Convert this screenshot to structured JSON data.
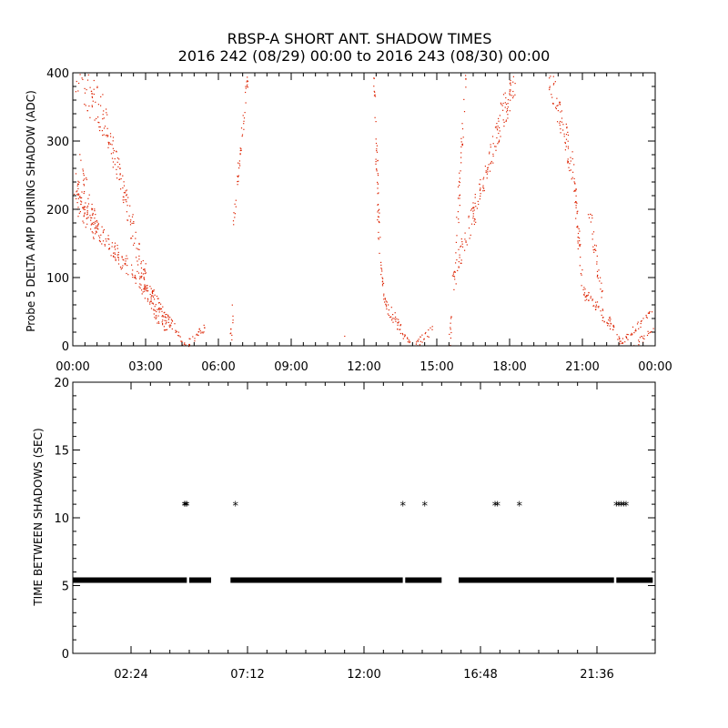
{
  "title": {
    "line1": "RBSP-A SHORT ANT. SHADOW TIMES",
    "line2": "2016 242 (08/29) 00:00 to 2016 243 (08/30) 00:00"
  },
  "colors": {
    "amp": "#dd2200",
    "gap": "#000000",
    "axis": "#000000"
  },
  "chart_data": [
    {
      "type": "scatter",
      "name": "delta-amp",
      "ylabel": "Probe 5 DELTA AMP DURING SHADOW (ADC)",
      "xlabel": "",
      "xlim": [
        0,
        24
      ],
      "ylim": [
        0,
        400
      ],
      "x_ticks": [
        0,
        3,
        6,
        9,
        12,
        15,
        18,
        21,
        24
      ],
      "x_tick_labels": [
        "00:00",
        "03:00",
        "06:00",
        "09:00",
        "12:00",
        "15:00",
        "18:00",
        "21:00",
        "00:00"
      ],
      "y_ticks": [
        0,
        100,
        200,
        300,
        400
      ],
      "y_tick_labels": [
        "0",
        "100",
        "200",
        "300",
        "400"
      ],
      "segments": [
        {
          "x0": 0.0,
          "y0": 240,
          "x1": 0.9,
          "y1": 175,
          "spread": 22,
          "density": 50
        },
        {
          "x0": 0.0,
          "y0": 215,
          "x1": 0.6,
          "y1": 190,
          "spread": 20,
          "density": 30
        },
        {
          "x0": 0.3,
          "y0": 270,
          "x1": 1.0,
          "y1": 170,
          "spread": 12,
          "density": 30
        },
        {
          "x0": 0.9,
          "y0": 175,
          "x1": 3.5,
          "y1": 60,
          "spread": 14,
          "density": 140
        },
        {
          "x0": 3.5,
          "y0": 60,
          "x1": 4.2,
          "y1": 25,
          "spread": 7,
          "density": 40
        },
        {
          "x0": 4.2,
          "y0": 25,
          "x1": 4.6,
          "y1": 1,
          "spread": 3,
          "density": 15
        },
        {
          "x0": 0.1,
          "y0": 400,
          "x1": 1.3,
          "y1": 335,
          "spread": 32,
          "density": 60
        },
        {
          "x0": 1.3,
          "y0": 335,
          "x1": 3.3,
          "y1": 50,
          "spread": 22,
          "density": 130
        },
        {
          "x0": 3.3,
          "y0": 50,
          "x1": 3.9,
          "y1": 25,
          "spread": 8,
          "density": 25
        },
        {
          "x0": 4.7,
          "y0": 2,
          "x1": 5.4,
          "y1": 28,
          "spread": 6,
          "density": 25
        },
        {
          "x0": 6.5,
          "y0": 8,
          "x1": 6.6,
          "y1": 70,
          "spread": 5,
          "density": 10
        },
        {
          "x0": 6.6,
          "y0": 180,
          "x1": 7.2,
          "y1": 400,
          "spread": 8,
          "density": 45
        },
        {
          "x0": 12.4,
          "y0": 400,
          "x1": 12.6,
          "y1": 160,
          "spread": 10,
          "density": 45
        },
        {
          "x0": 12.6,
          "y0": 160,
          "x1": 12.8,
          "y1": 65,
          "spread": 8,
          "density": 20
        },
        {
          "x0": 12.8,
          "y0": 65,
          "x1": 13.6,
          "y1": 20,
          "spread": 9,
          "density": 40
        },
        {
          "x0": 13.6,
          "y0": 20,
          "x1": 13.9,
          "y1": 1,
          "spread": 3,
          "density": 12
        },
        {
          "x0": 14.1,
          "y0": 2,
          "x1": 14.8,
          "y1": 25,
          "spread": 6,
          "density": 22
        },
        {
          "x0": 15.5,
          "y0": 3,
          "x1": 15.6,
          "y1": 50,
          "spread": 5,
          "density": 10
        },
        {
          "x0": 15.6,
          "y0": 90,
          "x1": 16.8,
          "y1": 230,
          "spread": 18,
          "density": 70
        },
        {
          "x0": 16.8,
          "y0": 230,
          "x1": 17.6,
          "y1": 330,
          "spread": 22,
          "density": 50
        },
        {
          "x0": 17.6,
          "y0": 330,
          "x1": 18.2,
          "y1": 395,
          "spread": 25,
          "density": 50
        },
        {
          "x0": 15.7,
          "y0": 110,
          "x1": 16.2,
          "y1": 400,
          "spread": 14,
          "density": 40
        },
        {
          "x0": 19.6,
          "y0": 400,
          "x1": 20.6,
          "y1": 260,
          "spread": 25,
          "density": 70
        },
        {
          "x0": 20.6,
          "y0": 260,
          "x1": 21.0,
          "y1": 80,
          "spread": 14,
          "density": 45
        },
        {
          "x0": 21.0,
          "y0": 80,
          "x1": 22.2,
          "y1": 30,
          "spread": 9,
          "density": 55
        },
        {
          "x0": 22.2,
          "y0": 30,
          "x1": 22.6,
          "y1": 2,
          "spread": 4,
          "density": 15
        },
        {
          "x0": 21.2,
          "y0": 215,
          "x1": 21.8,
          "y1": 70,
          "spread": 12,
          "density": 35
        },
        {
          "x0": 22.6,
          "y0": 4,
          "x1": 23.4,
          "y1": 35,
          "spread": 6,
          "density": 25
        },
        {
          "x0": 23.4,
          "y0": 35,
          "x1": 23.9,
          "y1": 55,
          "spread": 4,
          "density": 10
        },
        {
          "x0": 23.1,
          "y0": 2,
          "x1": 23.9,
          "y1": 22,
          "spread": 5,
          "density": 18
        },
        {
          "x0": 11.2,
          "y0": 15,
          "x1": 11.3,
          "y1": 15,
          "spread": 1,
          "density": 1
        }
      ]
    },
    {
      "type": "scatter",
      "name": "time-between-shadows",
      "ylabel": "TIME BETWEEN SHADOWS (SEC)",
      "xlabel": "",
      "xlim": [
        0,
        24
      ],
      "ylim": [
        0,
        20
      ],
      "x_ticks": [
        2.4,
        7.2,
        12.0,
        16.8,
        21.6
      ],
      "x_tick_labels": [
        "02:24",
        "07:12",
        "12:00",
        "16:48",
        "21:36"
      ],
      "y_ticks": [
        0,
        5,
        10,
        15,
        20
      ],
      "y_tick_labels": [
        "0",
        "5",
        "10",
        "15",
        "20"
      ],
      "baseline": {
        "value": 5.4,
        "ranges": [
          [
            0.0,
            4.7
          ],
          [
            4.8,
            5.7
          ],
          [
            6.5,
            13.6
          ],
          [
            13.7,
            15.2
          ],
          [
            15.9,
            22.3
          ],
          [
            22.4,
            23.9
          ]
        ]
      },
      "outliers": [
        {
          "x": 4.6,
          "y": 10.9
        },
        {
          "x": 4.7,
          "y": 10.9
        },
        {
          "x": 4.65,
          "y": 10.9
        },
        {
          "x": 6.7,
          "y": 10.9
        },
        {
          "x": 13.6,
          "y": 10.9
        },
        {
          "x": 14.5,
          "y": 10.9
        },
        {
          "x": 17.4,
          "y": 10.9
        },
        {
          "x": 17.5,
          "y": 10.9
        },
        {
          "x": 18.4,
          "y": 10.9
        },
        {
          "x": 22.4,
          "y": 10.9
        },
        {
          "x": 22.5,
          "y": 10.9
        },
        {
          "x": 22.6,
          "y": 10.9
        },
        {
          "x": 22.7,
          "y": 10.9
        },
        {
          "x": 22.8,
          "y": 10.9
        }
      ]
    }
  ]
}
